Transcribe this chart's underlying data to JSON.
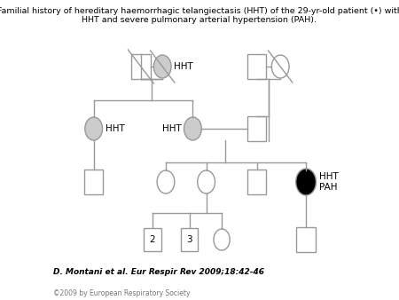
{
  "title": "Familial history of hereditary haemorrhagic telangiectasis (HHT) of the 29-yr-old patient (•) with\nHHT and severe pulmonary arterial hypertension (PAH).",
  "citation": "D. Montani et al. Eur Respir Rev 2009;18:42-46",
  "copyright": "©2009 by European Respiratory Society",
  "bg_color": "#ffffff",
  "line_color": "#999999",
  "symbol_edge_color": "#999999",
  "hht_fill": "#cccccc",
  "affected_fill": "#000000",
  "unaffected_fill": "#ffffff",
  "sq": 14,
  "cr": 13
}
